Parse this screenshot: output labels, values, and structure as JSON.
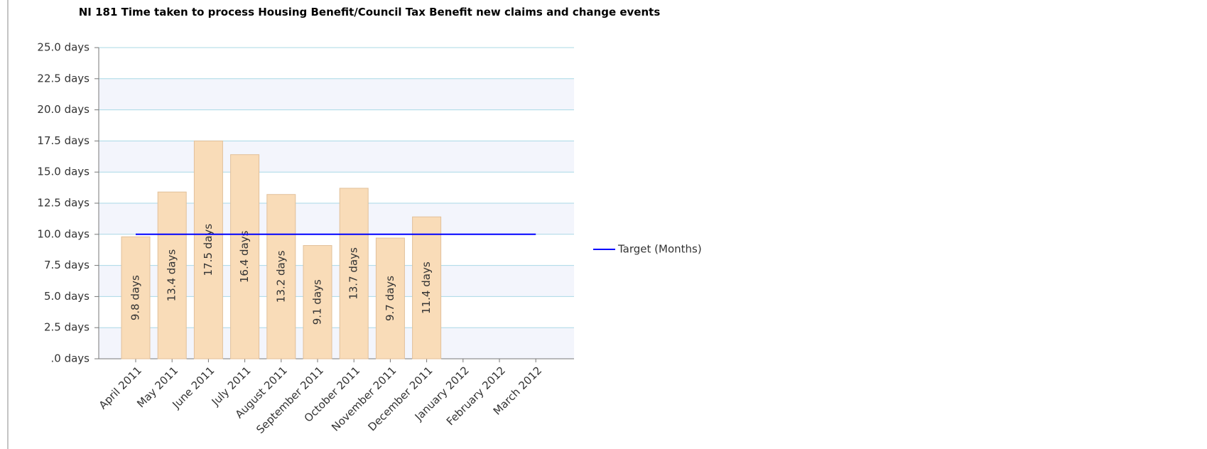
{
  "chart_data": {
    "type": "bar",
    "title": "NI 181 Time taken to process Housing Benefit/Council Tax Benefit new claims and change events",
    "categories": [
      "April 2011",
      "May 2011",
      "June 2011",
      "July 2011",
      "August 2011",
      "September 2011",
      "October 2011",
      "November 2011",
      "December 2011",
      "January 2012",
      "February 2012",
      "March 2012"
    ],
    "series": [
      {
        "type": "bar",
        "color": "#f9dcb8",
        "values": [
          9.8,
          13.4,
          17.5,
          16.4,
          13.2,
          9.1,
          13.7,
          9.7,
          11.4,
          null,
          null,
          null
        ],
        "value_labels": [
          "9.8 days",
          "13.4 days",
          "17.5 days",
          "16.4 days",
          "13.2 days",
          "9.1 days",
          "13.7 days",
          "9.7 days",
          "11.4 days",
          null,
          null,
          null
        ]
      },
      {
        "type": "line",
        "name": "Target (Months)",
        "color": "#0000ff",
        "values": [
          10,
          10,
          10,
          10,
          10,
          10,
          10,
          10,
          10,
          10,
          10,
          10
        ]
      }
    ],
    "ylim": [
      0,
      25
    ],
    "yticks": [
      {
        "value": 0,
        "label": ".0 days"
      },
      {
        "value": 2.5,
        "label": "2.5 days"
      },
      {
        "value": 5,
        "label": "5.0 days"
      },
      {
        "value": 7.5,
        "label": "7.5 days"
      },
      {
        "value": 10,
        "label": "10.0 days"
      },
      {
        "value": 12.5,
        "label": "12.5 days"
      },
      {
        "value": 15,
        "label": "15.0 days"
      },
      {
        "value": 17.5,
        "label": "17.5 days"
      },
      {
        "value": 20,
        "label": "20.0 days"
      },
      {
        "value": 22.5,
        "label": "22.5 days"
      },
      {
        "value": 25,
        "label": "25.0 days"
      }
    ],
    "grid": true,
    "legend": "right"
  }
}
